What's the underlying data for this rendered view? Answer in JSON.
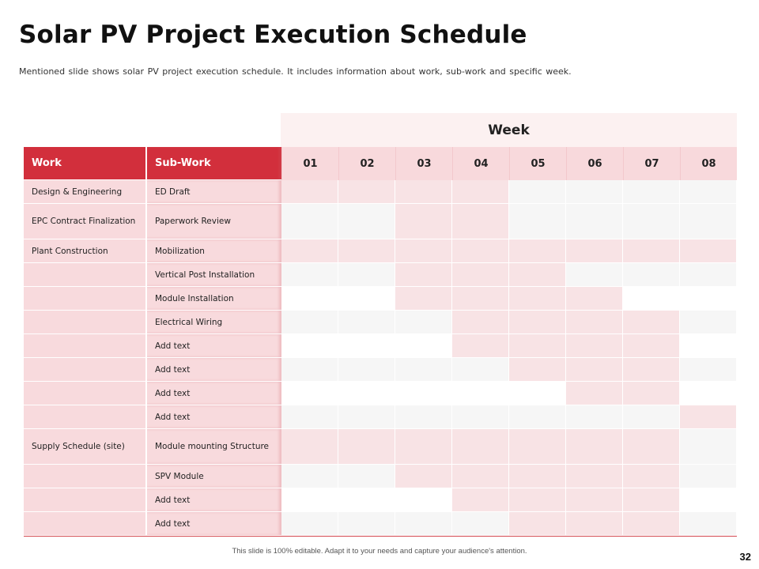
{
  "slide": {
    "title": "Solar PV Project Execution Schedule",
    "subtitle": "Mentioned slide shows solar PV project execution schedule. It includes information  about work, sub-work and specific week.",
    "footer": "This slide is 100% editable. Adapt it to your needs and capture your audience's attention.",
    "page_number": "32"
  },
  "table": {
    "week_label": "Week",
    "work_header": "Work",
    "subwork_header": "Sub-Work",
    "weeks": [
      "01",
      "02",
      "03",
      "04",
      "05",
      "06",
      "07",
      "08"
    ],
    "rows": [
      {
        "work": "Design & Engineering",
        "sub": "ED Draft",
        "active": [
          1,
          2,
          3,
          4
        ]
      },
      {
        "work": "EPC Contract Finalization",
        "sub": "Paperwork Review",
        "active": [
          3,
          4
        ]
      },
      {
        "work": "Plant Construction",
        "sub": "Mobilization",
        "active": [
          1,
          2,
          3,
          4,
          5,
          6,
          7,
          8
        ]
      },
      {
        "work": "",
        "sub": "Vertical Post Installation",
        "active": [
          3,
          4,
          5
        ]
      },
      {
        "work": "",
        "sub": "Module Installation",
        "active": [
          3,
          4,
          5,
          6
        ]
      },
      {
        "work": "",
        "sub": "Electrical Wiring",
        "active": [
          4,
          5,
          6,
          7
        ]
      },
      {
        "work": "",
        "sub": "Add text",
        "active": [
          4,
          5,
          6,
          7
        ]
      },
      {
        "work": "",
        "sub": "Add text",
        "active": [
          5,
          6,
          7
        ]
      },
      {
        "work": "",
        "sub": "Add text",
        "active": [
          6,
          7
        ]
      },
      {
        "work": "",
        "sub": "Add text",
        "active": [
          8
        ]
      },
      {
        "work": "Supply Schedule  (site)",
        "sub": "Module mounting Structure",
        "active": [
          1,
          2,
          3,
          4,
          5,
          6,
          7
        ]
      },
      {
        "work": "",
        "sub": "SPV Module",
        "active": [
          3,
          4,
          5,
          6,
          7
        ]
      },
      {
        "work": "",
        "sub": "Add text",
        "active": [
          4,
          5,
          6,
          7
        ]
      },
      {
        "work": "",
        "sub": "Add text",
        "active": [
          5,
          6,
          7
        ]
      }
    ]
  },
  "colors": {
    "header_red": "#d22f3c",
    "cell_pink": "#f8dadd",
    "active_pink": "#f8e3e5",
    "week_band": "#fcf1f1"
  }
}
